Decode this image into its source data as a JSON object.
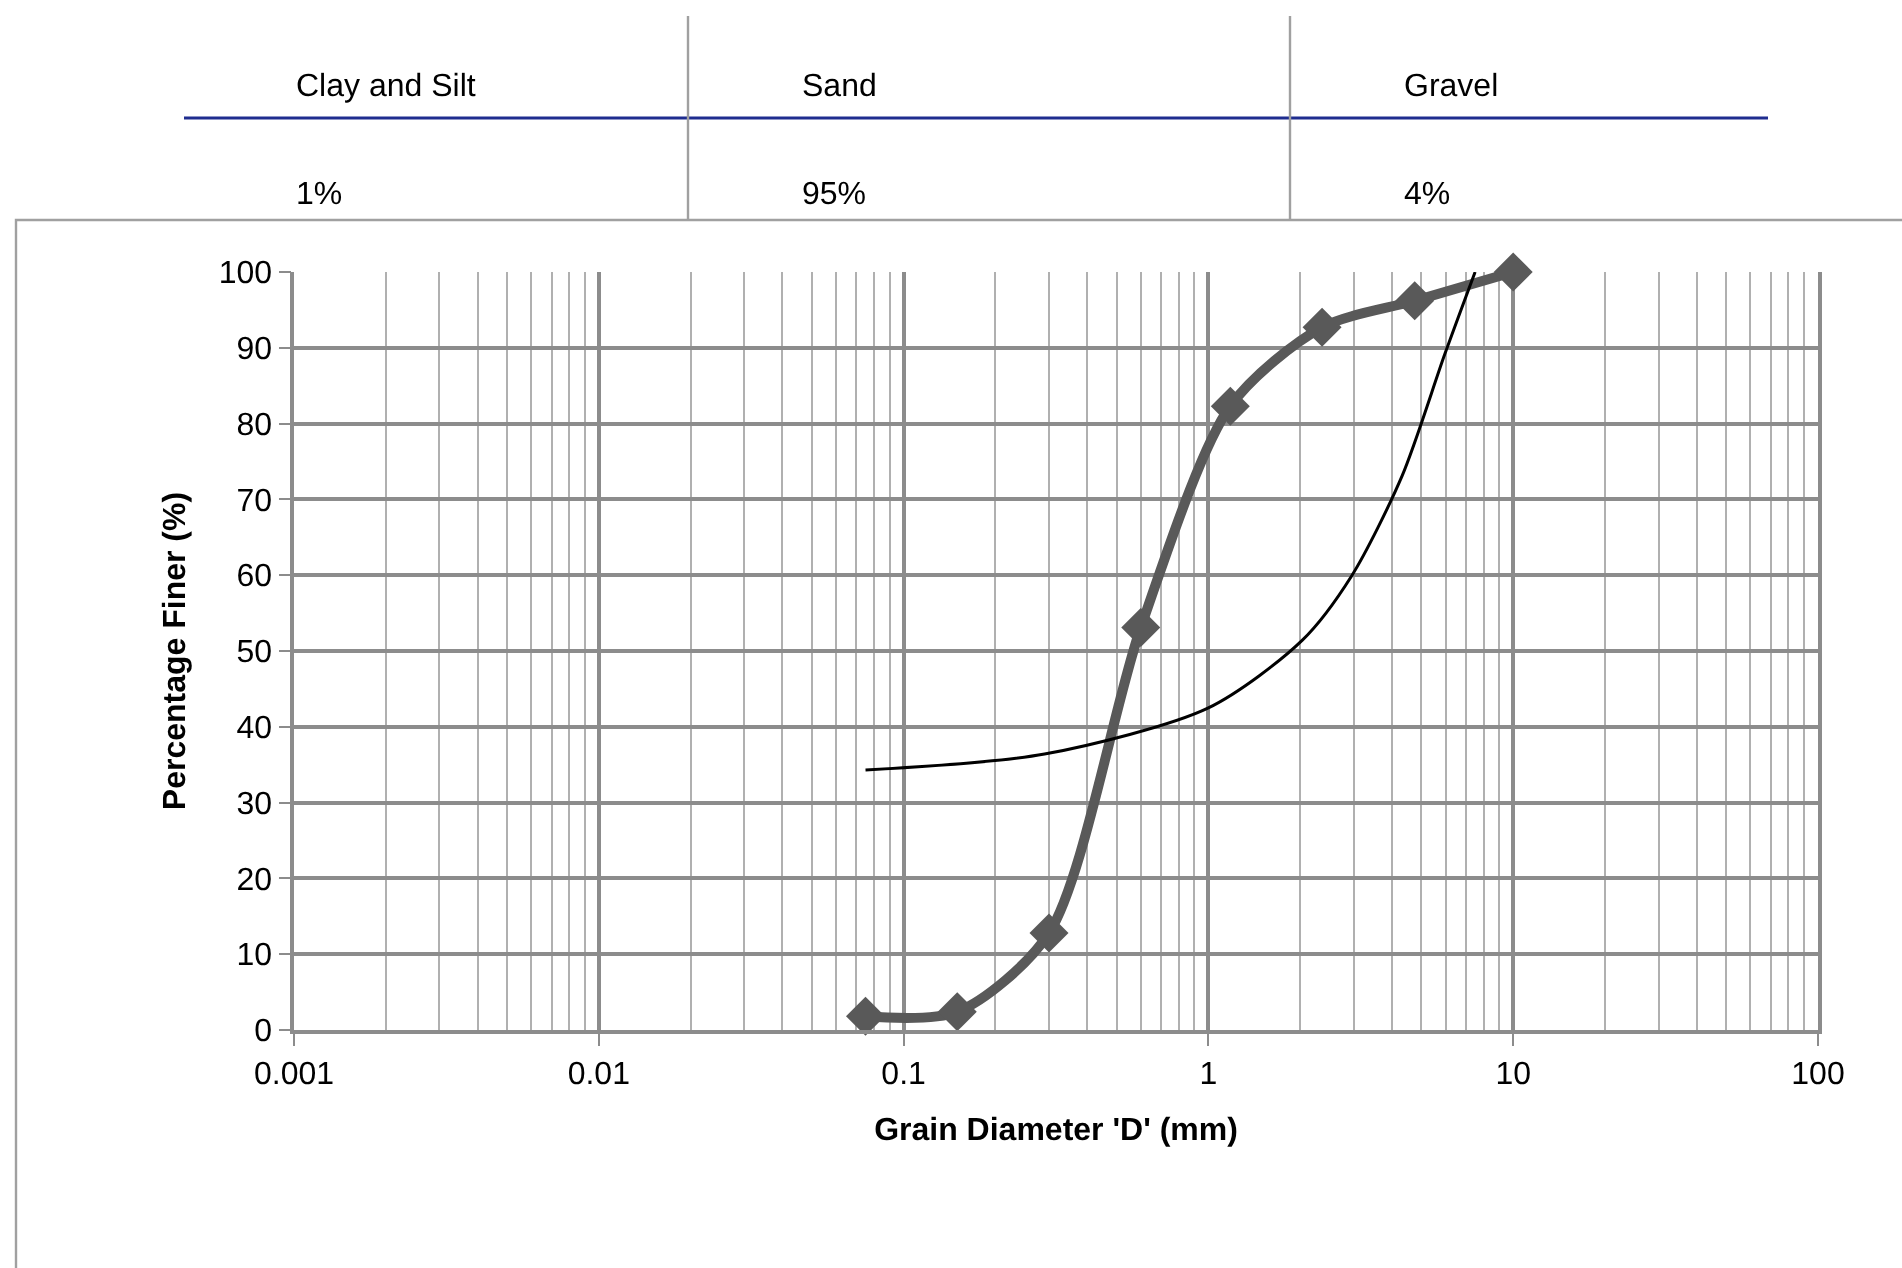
{
  "chart_data": {
    "type": "line",
    "xlabel": "Grain Diameter 'D' (mm)",
    "ylabel": "Percentage Finer (%)",
    "annotations": [
      "Clay and Silt",
      "Sand",
      "Gravel",
      "1%",
      "95%",
      "4%"
    ],
    "series": [
      {
        "color": "#595959",
        "marker": "diamond",
        "x": [
          0.075,
          0.15,
          0.3,
          0.6,
          1.18,
          2.36,
          4.75,
          10
        ],
        "values": [
          1.8,
          2.4,
          12.8,
          53.1,
          82.3,
          92.7,
          96.2,
          100
        ]
      },
      {
        "color": "#000000",
        "marker": "none",
        "x": [
          0.075,
          0.29,
          1.0,
          2.03,
          2.95,
          4.32,
          5.97,
          7.5
        ],
        "values": [
          34.3,
          36.4,
          42.5,
          51.4,
          59.9,
          73.1,
          89.2,
          100
        ]
      }
    ],
    "log": "x",
    "xlim": [
      0.001,
      100
    ],
    "xticks": [
      0.001,
      0.01,
      0.1,
      1,
      10,
      100
    ],
    "ylim": [
      0,
      100
    ],
    "yticks": [
      0,
      10,
      20,
      30,
      40,
      50,
      60,
      70,
      80,
      90,
      100
    ],
    "grid": true,
    "line_style": "solid"
  }
}
